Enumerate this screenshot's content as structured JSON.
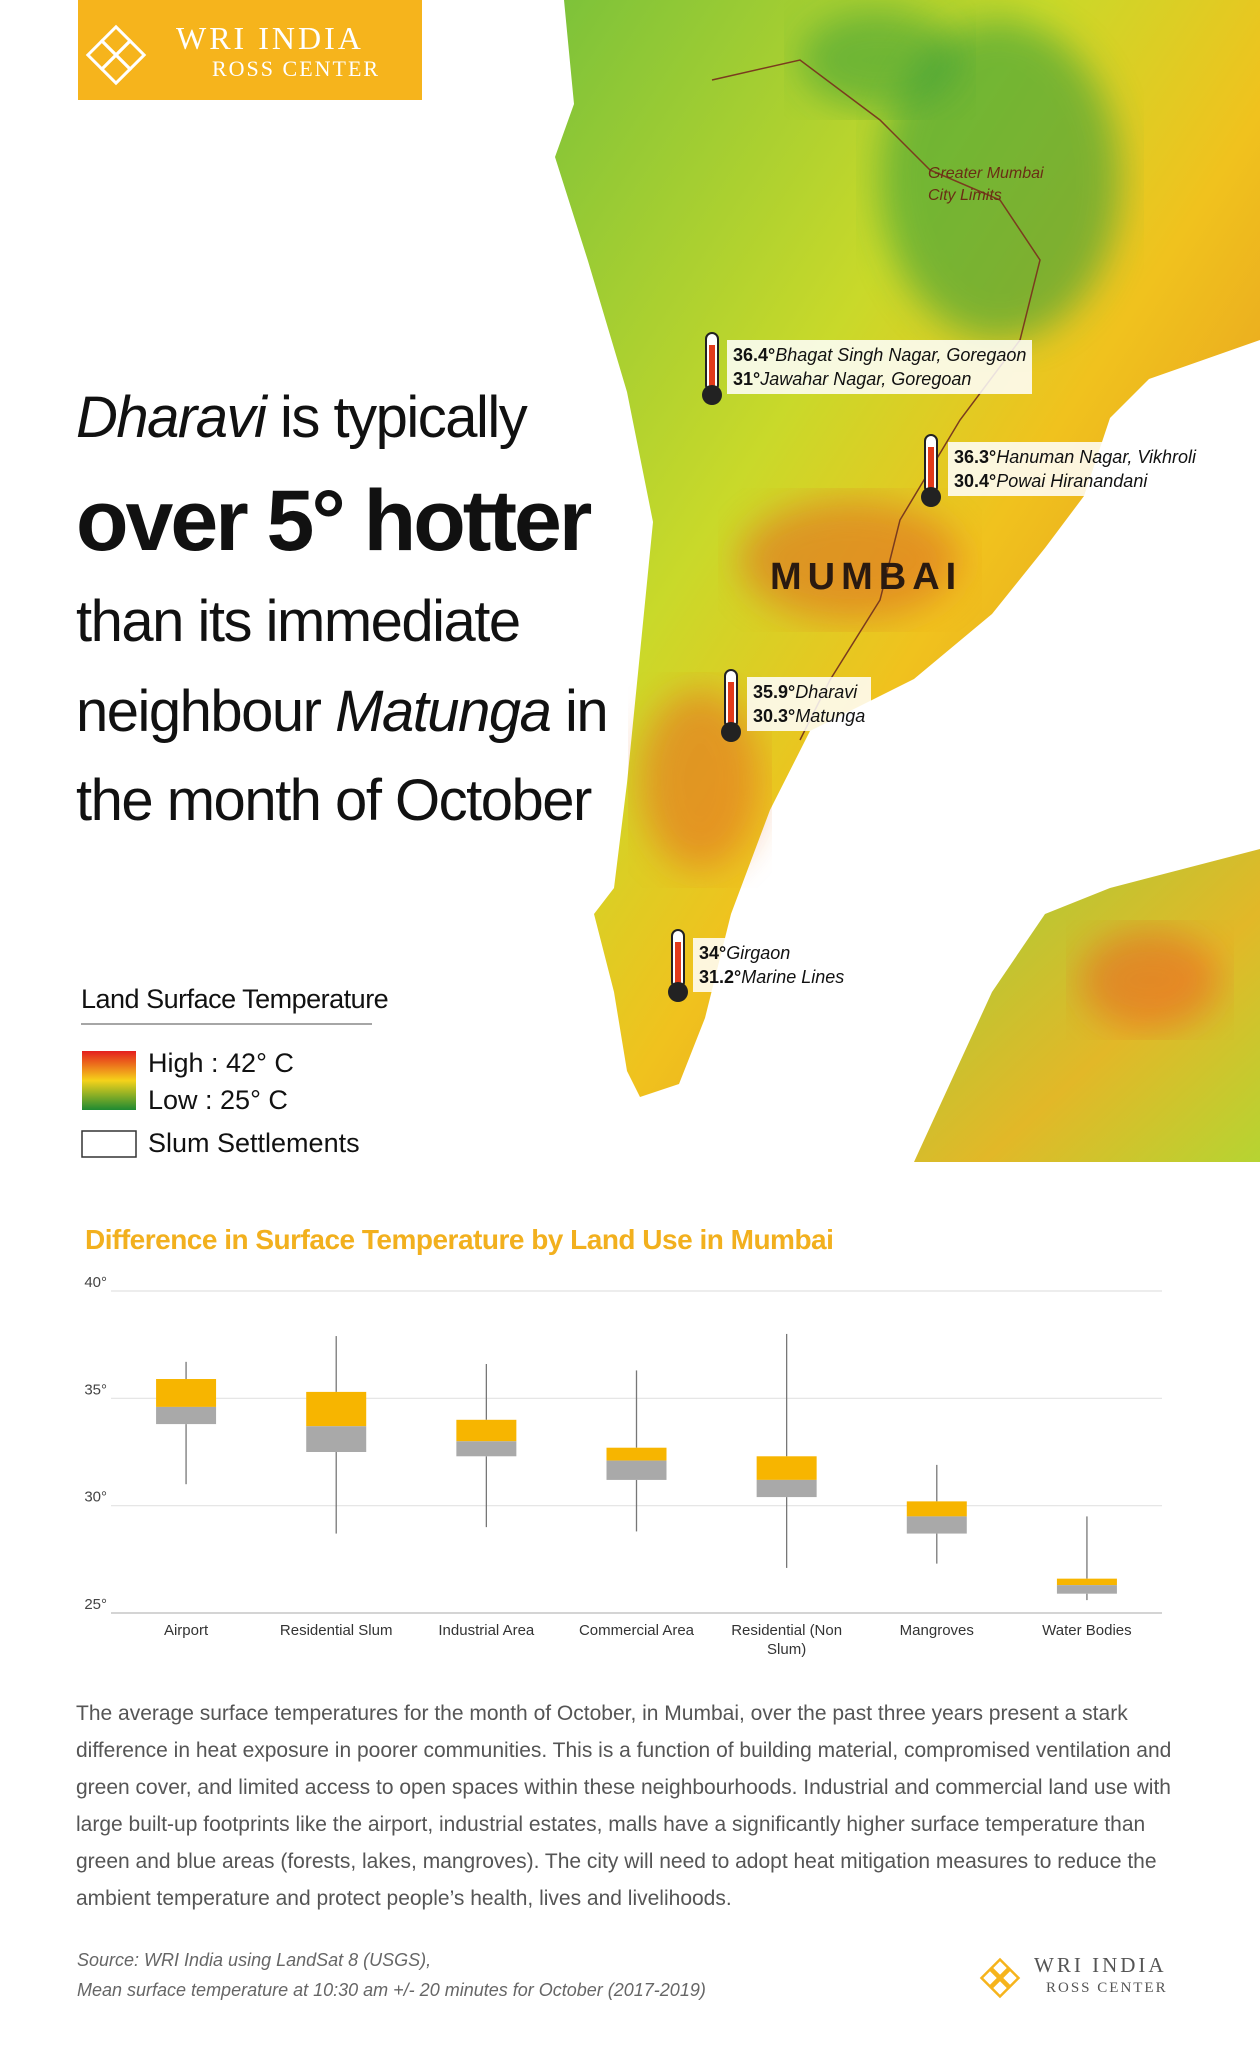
{
  "logo": {
    "name": "WRI INDIA",
    "sub": "ROSS CENTER"
  },
  "headline": {
    "l1_italic": "Dharavi",
    "l1_rest": " is typically",
    "l2": "over 5° hotter",
    "l3": "than its immediate",
    "l4_start": "neighbour ",
    "l4_italic": "Matunga",
    "l4_end": " in",
    "l5": "the month of October"
  },
  "map": {
    "city": "MUMBAI",
    "limits": "Greater Mumbai City Limits",
    "annotations": [
      {
        "high": "36.4°",
        "high_place": "Bhagat Singh Nagar, Goregaon",
        "low": "31°",
        "low_place": "Jawahar Nagar, Goregoan"
      },
      {
        "high": "36.3°",
        "high_place": "Hanuman Nagar, Vikhroli",
        "low": "30.4°",
        "low_place": "Powai Hiranandani"
      },
      {
        "high": "35.9°",
        "high_place": "Dharavi",
        "low": "30.3°",
        "low_place": "Matunga"
      },
      {
        "high": "34°",
        "high_place": "Girgaon",
        "low": "31.2°",
        "low_place": "Marine Lines"
      }
    ]
  },
  "legend": {
    "title": "Land Surface Temperature",
    "high": "High : 42° C",
    "low": "Low : 25° C",
    "slum": "Slum Settlements"
  },
  "chart_data": {
    "type": "box",
    "title": "Difference in Surface Temperature by Land Use in Mumbai",
    "categories": [
      "Airport",
      "Residential Slum",
      "Industrial Area",
      "Commercial Area",
      "Residential (Non Slum)",
      "Mangroves",
      "Water Bodies"
    ],
    "high": [
      36.7,
      37.9,
      36.6,
      36.3,
      38.0,
      31.9,
      29.5
    ],
    "q3": [
      35.9,
      35.3,
      34.0,
      32.7,
      32.3,
      30.2,
      26.6
    ],
    "median": [
      34.6,
      33.7,
      33.0,
      32.1,
      31.2,
      29.5,
      26.3
    ],
    "q1": [
      33.8,
      32.5,
      32.3,
      31.2,
      30.4,
      28.7,
      25.9
    ],
    "low": [
      31.0,
      28.7,
      29.0,
      28.8,
      27.1,
      27.3,
      25.6
    ],
    "upper_color": "#f7b500",
    "lower_color": "#a9a9a9",
    "ylim": [
      25,
      40
    ],
    "yticks": [
      {
        "value": 25,
        "label": "25°"
      },
      {
        "value": 30,
        "label": "30°"
      },
      {
        "value": 35,
        "label": "35°"
      },
      {
        "value": 40,
        "label": "40°"
      }
    ],
    "grid": true
  },
  "body": "The average surface temperatures for the month of October, in Mumbai, over the past three years present a stark difference in heat exposure in poorer communities. This is a function of building material, compromised ventilation and green cover, and limited access to open spaces within these neighbourhoods. Industrial and commercial land use with large built-up footprints like the airport, industrial estates, malls have a significantly higher surface temperature than green and blue areas (forests, lakes, mangroves). The city will need to adopt heat mitigation measures to reduce the ambient temperature and protect people’s health, lives and livelihoods.",
  "source": [
    "Source: WRI India using LandSat 8 (USGS),",
    "Mean surface temperature at 10:30 am +/- 20 minutes for October (2017-2019)"
  ]
}
